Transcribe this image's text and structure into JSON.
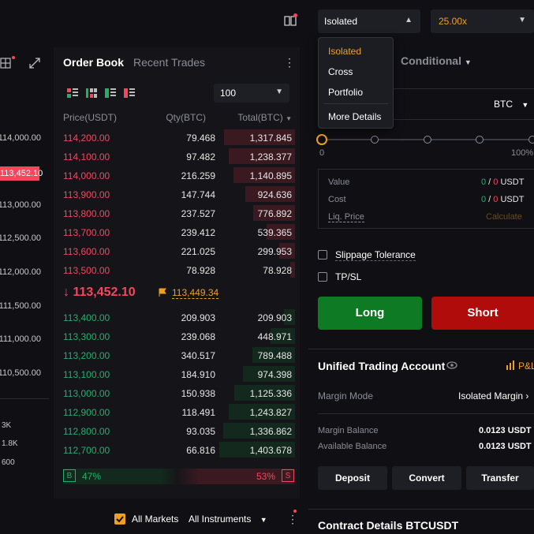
{
  "chart": {
    "axis": [
      "114,000.00",
      "113,000.00",
      "112,500.00",
      "112,000.00",
      "111,500.00",
      "111,000.00",
      "110,500.00"
    ],
    "current_price": "113,452.10",
    "volume": [
      "3K",
      "1.8K",
      "600"
    ]
  },
  "orderbook": {
    "tabs": [
      "Order Book",
      "Recent Trades"
    ],
    "depth": "100",
    "headers": {
      "price": "Price(USDT)",
      "qty": "Qty(BTC)",
      "total": "Total(BTC)"
    },
    "asks": [
      {
        "p": "114,200.00",
        "q": "79.468",
        "t": "1,317.845",
        "depth": 0.94
      },
      {
        "p": "114,100.00",
        "q": "97.482",
        "t": "1,238.377",
        "depth": 0.88
      },
      {
        "p": "114,000.00",
        "q": "216.259",
        "t": "1,140.895",
        "depth": 0.81
      },
      {
        "p": "113,900.00",
        "q": "147.744",
        "t": "924.636",
        "depth": 0.66
      },
      {
        "p": "113,800.00",
        "q": "237.527",
        "t": "776.892",
        "depth": 0.55
      },
      {
        "p": "113,700.00",
        "q": "239.412",
        "t": "539.365",
        "depth": 0.38
      },
      {
        "p": "113,600.00",
        "q": "221.025",
        "t": "299.953",
        "depth": 0.21
      },
      {
        "p": "113,500.00",
        "q": "78.928",
        "t": "78.928",
        "depth": 0.06
      }
    ],
    "last_price": "113,452.10",
    "mark_price": "113,449.34",
    "bids": [
      {
        "p": "113,400.00",
        "q": "209.903",
        "t": "209.903",
        "depth": 0.15
      },
      {
        "p": "113,300.00",
        "q": "239.068",
        "t": "448.971",
        "depth": 0.32
      },
      {
        "p": "113,200.00",
        "q": "340.517",
        "t": "789.488",
        "depth": 0.56
      },
      {
        "p": "113,100.00",
        "q": "184.910",
        "t": "974.398",
        "depth": 0.69
      },
      {
        "p": "113,000.00",
        "q": "150.938",
        "t": "1,125.336",
        "depth": 0.8
      },
      {
        "p": "112,900.00",
        "q": "118.491",
        "t": "1,243.827",
        "depth": 0.88
      },
      {
        "p": "112,800.00",
        "q": "93.035",
        "t": "1,336.862",
        "depth": 0.95
      },
      {
        "p": "112,700.00",
        "q": "66.816",
        "t": "1,403.678",
        "depth": 1.0
      }
    ],
    "ratio": {
      "buy_label": "B",
      "buy": "47%",
      "sell": "53%",
      "sell_label": "S"
    }
  },
  "bottom_bar": {
    "all_markets": "All Markets",
    "all_instruments": "All Instruments"
  },
  "trade": {
    "margin_mode": "Isolated",
    "leverage": "25.00x",
    "dropdown": [
      "Isolated",
      "Cross",
      "Portfolio",
      "More Details"
    ],
    "conditional": "Conditional",
    "unit": "BTC",
    "slider_labels": [
      "0",
      "100%"
    ],
    "info": {
      "value_label": "Value",
      "value_buy": "0",
      "value_sell": "0",
      "value_unit": "USDT",
      "cost_label": "Cost",
      "cost_buy": "0",
      "cost_sell": "0",
      "cost_unit": "USDT",
      "liq_label": "Liq. Price",
      "liq_value": "Calculate"
    },
    "slippage": "Slippage Tolerance",
    "tpsl": "TP/SL",
    "long": "Long",
    "short": "Short"
  },
  "account": {
    "title": "Unified Trading Account",
    "pnl": "P&L",
    "margin_mode_label": "Margin Mode",
    "margin_mode_value": "Isolated Margin",
    "margin_balance_label": "Margin Balance",
    "margin_balance_value": "0.0123 USDT",
    "available_label": "Available Balance",
    "available_value": "0.0123 USDT",
    "deposit": "Deposit",
    "convert": "Convert",
    "transfer": "Transfer"
  },
  "contract": {
    "title": "Contract Details BTCUSDT"
  }
}
